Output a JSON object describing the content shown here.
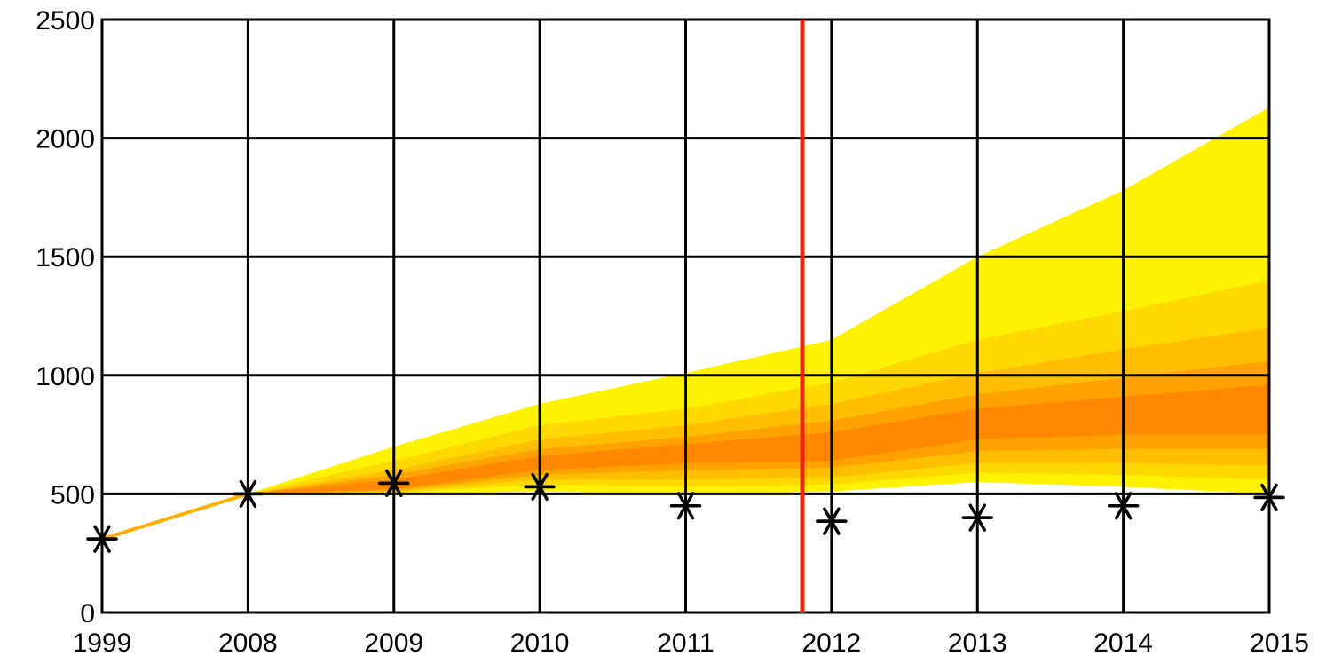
{
  "chart_data": {
    "type": "area",
    "title": "",
    "xlabel": "",
    "ylabel": "",
    "categories": [
      "1999",
      "2008",
      "2009",
      "2010",
      "2011",
      "2012",
      "2013",
      "2014",
      "2015"
    ],
    "ylim": [
      0,
      2500
    ],
    "y_ticks": [
      "0",
      "500",
      "1000",
      "1500",
      "2000",
      "2500"
    ],
    "grid": true,
    "markers": {
      "symbol": "asterisk",
      "values": [
        310,
        500,
        545,
        530,
        450,
        385,
        400,
        450,
        485
      ]
    },
    "fan_bands": [
      {
        "color": "#fff200",
        "lower": [
          310,
          500,
          500,
          510,
          500,
          510,
          550,
          530,
          500
        ],
        "upper": [
          310,
          500,
          700,
          880,
          1010,
          1150,
          1500,
          1780,
          2130
        ]
      },
      {
        "color": "#ffd800",
        "lower": [
          310,
          500,
          505,
          540,
          530,
          540,
          590,
          580,
          560
        ],
        "upper": [
          310,
          500,
          640,
          790,
          860,
          970,
          1150,
          1270,
          1400
        ]
      },
      {
        "color": "#ffbf00",
        "lower": [
          310,
          500,
          510,
          560,
          560,
          570,
          630,
          630,
          620
        ],
        "upper": [
          310,
          500,
          600,
          730,
          790,
          880,
          1010,
          1110,
          1200
        ]
      },
      {
        "color": "#ffa200",
        "lower": [
          310,
          500,
          515,
          580,
          600,
          610,
          680,
          690,
          690
        ],
        "upper": [
          310,
          500,
          580,
          690,
          740,
          810,
          920,
          990,
          1060
        ]
      },
      {
        "color": "#ff8800",
        "lower": [
          310,
          500,
          520,
          600,
          630,
          640,
          730,
          750,
          750
        ],
        "upper": [
          310,
          500,
          560,
          660,
          710,
          760,
          860,
          910,
          960
        ]
      }
    ],
    "projection_line": {
      "x": 2011.8,
      "color": "#e8280c"
    },
    "history_line_color": "#ffb000"
  }
}
